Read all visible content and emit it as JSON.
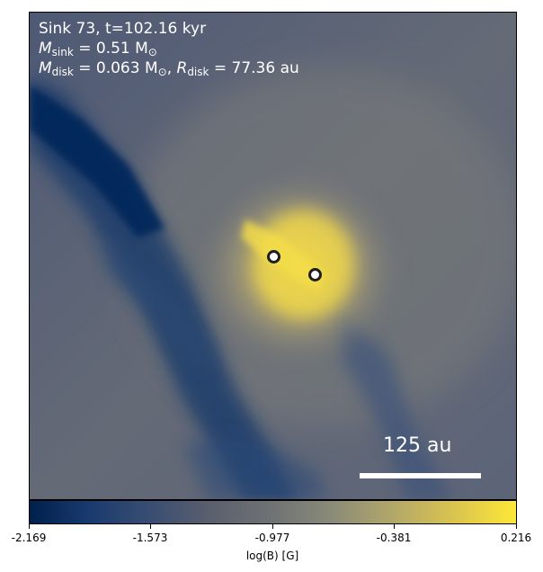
{
  "annotation": {
    "line1": "Sink 73, t=102.16 kyr",
    "msink_sym": "M",
    "msink_sub": "sink",
    "msink_val": " = 0.51 M",
    "msink_unit_sub": "⊙",
    "mdisk_sym": "M",
    "mdisk_sub": "disk",
    "mdisk_val": " = 0.063 M",
    "mdisk_unit_sub": "⊙",
    "rdisk_sep": ", ",
    "rdisk_sym": "R",
    "rdisk_sub": "disk",
    "rdisk_val": " = 77.36 au"
  },
  "scalebar": {
    "label": "125 au"
  },
  "colorbar": {
    "label": "log(B) [G]",
    "ticks": [
      "-2.169",
      "-1.573",
      "-0.977",
      "-0.381",
      "0.216"
    ],
    "colors": {
      "low": "#00204c",
      "mid": "#6f7374",
      "high": "#fde737"
    }
  },
  "sinks": [
    {
      "name": "sink-particle-1"
    },
    {
      "name": "sink-particle-2"
    }
  ]
}
